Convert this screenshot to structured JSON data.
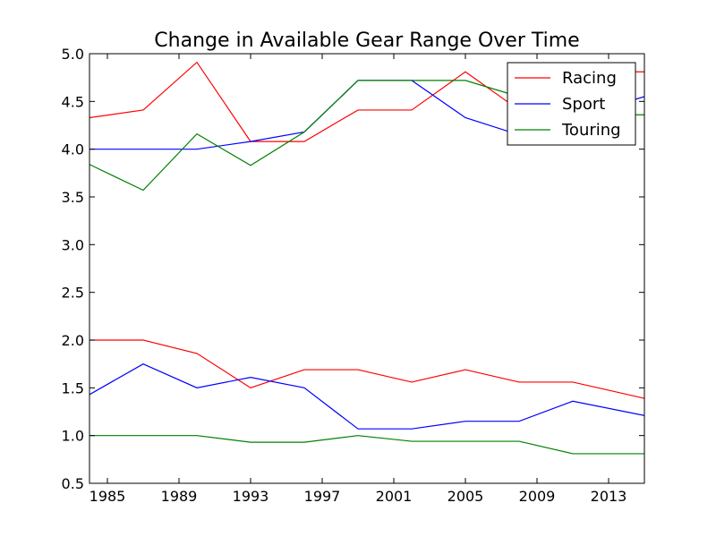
{
  "chart_data": {
    "type": "line",
    "title": "Change in Available Gear Range Over Time",
    "xlabel": "",
    "ylabel": "",
    "xlim": [
      1984,
      2015
    ],
    "ylim": [
      0.5,
      5.0
    ],
    "grid": false,
    "legend_position": "top-right",
    "x_ticks": [
      {
        "value": 1985,
        "label": "1985"
      },
      {
        "value": 1989,
        "label": "1989"
      },
      {
        "value": 1993,
        "label": "1993"
      },
      {
        "value": 1997,
        "label": "1997"
      },
      {
        "value": 2001,
        "label": "2001"
      },
      {
        "value": 2005,
        "label": "2005"
      },
      {
        "value": 2009,
        "label": "2009"
      },
      {
        "value": 2013,
        "label": "2013"
      }
    ],
    "y_ticks": [
      {
        "value": 0.5,
        "label": "0.5"
      },
      {
        "value": 1.0,
        "label": "1.0"
      },
      {
        "value": 1.5,
        "label": "1.5"
      },
      {
        "value": 2.0,
        "label": "2.0"
      },
      {
        "value": 2.5,
        "label": "2.5"
      },
      {
        "value": 3.0,
        "label": "3.0"
      },
      {
        "value": 3.5,
        "label": "3.5"
      },
      {
        "value": 4.0,
        "label": "4.0"
      },
      {
        "value": 4.5,
        "label": "4.5"
      },
      {
        "value": 5.0,
        "label": "5.0"
      }
    ],
    "x": [
      1984,
      1987,
      1990,
      1993,
      1996,
      1999,
      2002,
      2005,
      2008,
      2011,
      2015
    ],
    "series": [
      {
        "name": "Racing",
        "role": "upper",
        "color": "#ff0000",
        "in_legend": true,
        "values": [
          4.33,
          4.41,
          4.91,
          4.08,
          4.08,
          4.41,
          4.41,
          4.81,
          4.41,
          4.81,
          4.81
        ]
      },
      {
        "name": "Sport",
        "role": "upper",
        "color": "#0000ff",
        "in_legend": true,
        "values": [
          4.0,
          4.0,
          4.0,
          4.08,
          4.18,
          4.72,
          4.72,
          4.33,
          4.15,
          4.33,
          4.55
        ]
      },
      {
        "name": "Touring",
        "role": "upper",
        "color": "#008000",
        "in_legend": true,
        "values": [
          3.84,
          3.57,
          4.16,
          3.83,
          4.18,
          4.72,
          4.72,
          4.72,
          4.55,
          4.36,
          4.36
        ]
      },
      {
        "name": "",
        "role": "lower",
        "color": "#ff0000",
        "in_legend": false,
        "values": [
          2.0,
          2.0,
          1.86,
          1.5,
          1.69,
          1.69,
          1.56,
          1.69,
          1.56,
          1.56,
          1.39
        ]
      },
      {
        "name": "",
        "role": "lower",
        "color": "#0000ff",
        "in_legend": false,
        "values": [
          1.43,
          1.75,
          1.5,
          1.61,
          1.5,
          1.07,
          1.07,
          1.15,
          1.15,
          1.36,
          1.21
        ]
      },
      {
        "name": "",
        "role": "lower",
        "color": "#008000",
        "in_legend": false,
        "values": [
          1.0,
          1.0,
          1.0,
          0.93,
          0.93,
          1.0,
          0.94,
          0.94,
          0.94,
          0.81,
          0.81
        ]
      }
    ],
    "legend": [
      {
        "label": "Racing",
        "color": "#ff0000"
      },
      {
        "label": "Sport",
        "color": "#0000ff"
      },
      {
        "label": "Touring",
        "color": "#008000"
      }
    ]
  }
}
